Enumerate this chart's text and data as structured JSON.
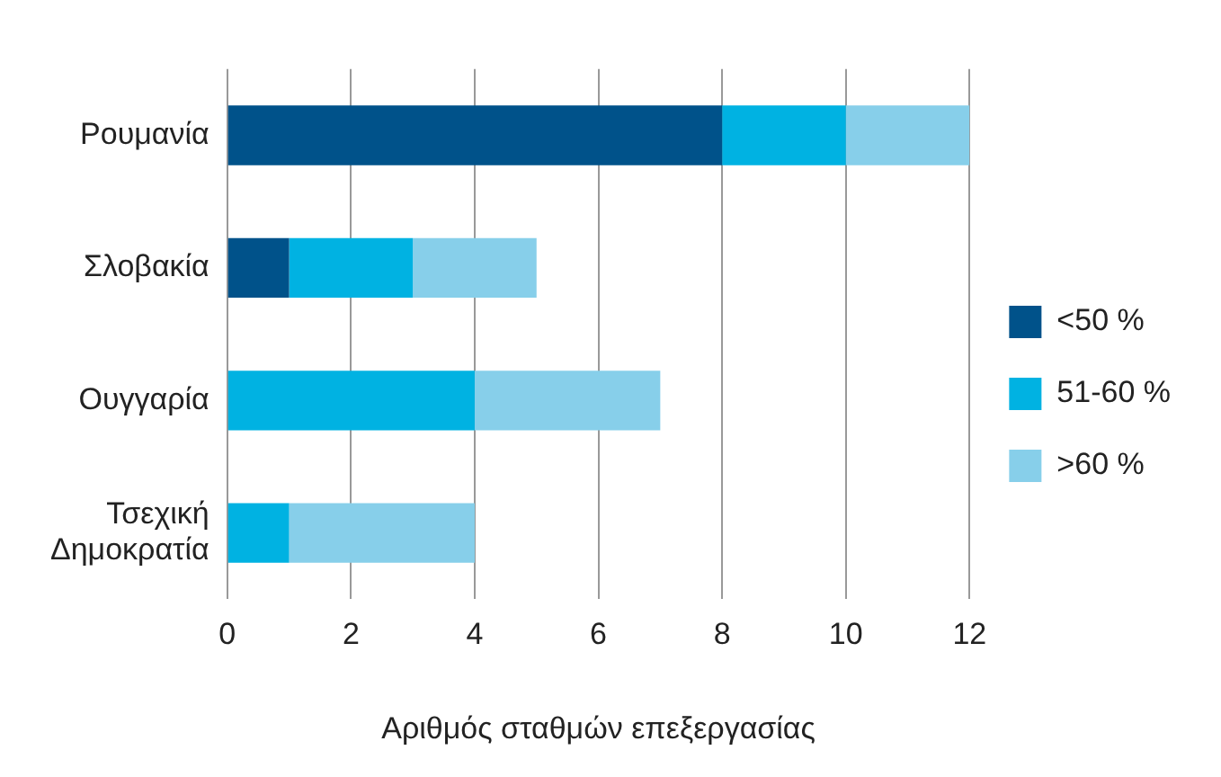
{
  "chart_data": {
    "type": "bar",
    "orientation": "horizontal",
    "stacked": true,
    "xlabel": "Αριθμός σταθμών επεξεργασίας",
    "categories": [
      "Ρουμανία",
      "Σλοβακία",
      "Ουγγαρία",
      "Τσεχική Δημοκρατία"
    ],
    "series": [
      {
        "name": "<50 %",
        "color": "#00528a",
        "values": [
          8,
          1,
          0,
          0
        ]
      },
      {
        "name": "51-60 %",
        "color": "#00b2e2",
        "values": [
          2,
          2,
          4,
          1
        ]
      },
      {
        "name": ">60 %",
        "color": "#87cfea",
        "values": [
          2,
          2,
          3,
          3
        ]
      }
    ],
    "xlim": [
      0,
      12
    ],
    "xticks": [
      0,
      2,
      4,
      6,
      8,
      10,
      12
    ],
    "grid": "x",
    "legend": "right"
  }
}
